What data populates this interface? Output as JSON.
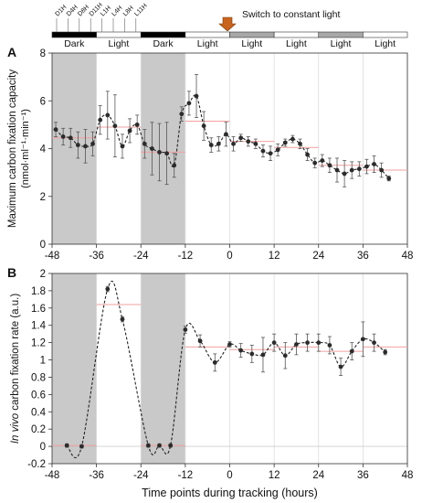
{
  "timeline": {
    "arrow_label": "Switch to constant light",
    "tick_labels": [
      "D1H",
      "D4H",
      "D8H",
      "D11H",
      "L1H",
      "L4H",
      "L8H",
      "L11H"
    ],
    "bars": [
      {
        "label": "Dark",
        "shade": "black"
      },
      {
        "label": "Light",
        "shade": "white"
      },
      {
        "label": "Dark",
        "shade": "black"
      },
      {
        "label": "Light",
        "shade": "white"
      },
      {
        "label": "Light",
        "shade": "gray"
      },
      {
        "label": "Light",
        "shade": "white"
      },
      {
        "label": "Light",
        "shade": "gray"
      },
      {
        "label": "Light",
        "shade": "white"
      }
    ],
    "arrow_color": "#C8641E"
  },
  "chart_data": [
    {
      "type": "line",
      "panel_label": "A",
      "ylabel": "Maximum carbon fixation capacity",
      "ylabel_unit": "(nmol·ml⁻¹·min⁻¹)",
      "xlim": [
        -48,
        48
      ],
      "ylim": [
        0,
        8
      ],
      "x_ticks": [
        -48,
        -36,
        -24,
        -12,
        0,
        12,
        24,
        36,
        48
      ],
      "y_ticks": [
        0,
        2,
        4,
        6,
        8
      ],
      "dark_intervals": [
        [
          -48,
          -36
        ],
        [
          -24,
          -12
        ]
      ],
      "series": [
        {
          "x": [
            -47,
            -45,
            -43,
            -41,
            -39,
            -37,
            -35,
            -33,
            -31,
            -29,
            -27,
            -25,
            -23,
            -21,
            -19,
            -17,
            -15,
            -13,
            -11,
            -9,
            -7,
            -5,
            -3,
            -1,
            1,
            3,
            5,
            7,
            9,
            11,
            13,
            15,
            17,
            19,
            21,
            23,
            25,
            27,
            29,
            31,
            33,
            35,
            37,
            39,
            41,
            43
          ],
          "y": [
            4.8,
            4.5,
            4.45,
            4.15,
            4.1,
            4.2,
            5.2,
            5.4,
            4.95,
            4.1,
            4.75,
            5.0,
            4.2,
            4.0,
            3.85,
            3.8,
            3.3,
            5.45,
            5.9,
            6.2,
            4.95,
            4.15,
            4.2,
            4.6,
            4.2,
            4.45,
            4.3,
            4.2,
            3.9,
            3.8,
            3.95,
            4.25,
            4.4,
            4.2,
            3.75,
            3.4,
            3.5,
            3.3,
            3.1,
            2.95,
            3.1,
            3.15,
            3.25,
            3.35,
            3.1,
            2.75
          ],
          "err": [
            0.3,
            0.35,
            0.4,
            0.55,
            0.7,
            0.5,
            0.6,
            1.0,
            1.3,
            0.5,
            0.5,
            0.4,
            0.6,
            1.1,
            1.2,
            1.3,
            0.5,
            0.3,
            0.5,
            0.9,
            0.6,
            0.3,
            0.3,
            0.5,
            0.3,
            0.15,
            0.2,
            0.2,
            0.25,
            0.3,
            0.25,
            0.15,
            0.15,
            0.2,
            0.25,
            0.2,
            0.25,
            0.3,
            0.5,
            0.55,
            0.35,
            0.3,
            0.3,
            0.35,
            0.3,
            0.1
          ]
        }
      ],
      "mean_segments": [
        {
          "x0": -48,
          "x1": -36,
          "y": 4.45
        },
        {
          "x0": -36,
          "x1": -24,
          "y": 4.9
        },
        {
          "x0": -24,
          "x1": -12,
          "y": 3.85
        },
        {
          "x0": -12,
          "x1": 0,
          "y": 5.15
        },
        {
          "x0": 0,
          "x1": 12,
          "y": 4.3
        },
        {
          "x0": 12,
          "x1": 24,
          "y": 4.05
        },
        {
          "x0": 24,
          "x1": 36,
          "y": 3.3
        },
        {
          "x0": 36,
          "x1": 48,
          "y": 3.1
        }
      ],
      "line_color": "#222222",
      "mean_color": "#F2A0A0",
      "dark_color": "#C9C9C9"
    },
    {
      "type": "line",
      "panel_label": "B",
      "ylabel_italic": "In vivo",
      "ylabel": " carbon fixation rate (a.u.)",
      "xlabel": "Time points during tracking (hours)",
      "xlim": [
        -48,
        48
      ],
      "ylim": [
        -0.2,
        2
      ],
      "x_ticks": [
        -48,
        -36,
        -24,
        -12,
        0,
        12,
        24,
        36,
        48
      ],
      "y_ticks": [
        -0.2,
        0,
        0.2,
        0.4,
        0.6,
        0.8,
        1,
        1.2,
        1.4,
        1.6,
        1.8,
        2
      ],
      "dark_intervals": [
        [
          -48,
          -36
        ],
        [
          -24,
          -12
        ]
      ],
      "series": [
        {
          "x": [
            -44,
            -40,
            -33,
            -29,
            -22,
            -19,
            -16,
            -12,
            -8,
            -4,
            0,
            3,
            6,
            9,
            12,
            15,
            18,
            21,
            24,
            27,
            30,
            33,
            36,
            39,
            42
          ],
          "y": [
            0.01,
            0.0,
            1.82,
            1.47,
            0.01,
            0.01,
            0.01,
            1.35,
            1.22,
            0.97,
            1.18,
            1.11,
            1.07,
            1.06,
            1.2,
            1.05,
            1.18,
            1.2,
            1.2,
            1.17,
            0.92,
            1.1,
            1.24,
            1.2,
            1.09
          ],
          "err": [
            0.02,
            0.02,
            0.03,
            0.03,
            0.02,
            0.02,
            0.02,
            0.04,
            0.07,
            0.1,
            0.03,
            0.08,
            0.1,
            0.2,
            0.1,
            0.15,
            0.12,
            0.1,
            0.1,
            0.1,
            0.1,
            0.1,
            0.2,
            0.1,
            0.03
          ]
        }
      ],
      "mean_segments": [
        {
          "x0": -48,
          "x1": -36,
          "y": 0.01
        },
        {
          "x0": -36,
          "x1": -24,
          "y": 1.64
        },
        {
          "x0": -24,
          "x1": -12,
          "y": 0.01
        },
        {
          "x0": -12,
          "x1": 0,
          "y": 1.15
        },
        {
          "x0": 0,
          "x1": 12,
          "y": 1.12
        },
        {
          "x0": 12,
          "x1": 24,
          "y": 1.15
        },
        {
          "x0": 24,
          "x1": 36,
          "y": 1.1
        },
        {
          "x0": 36,
          "x1": 48,
          "y": 1.15
        }
      ],
      "line_color": "#222222",
      "mean_color": "#F2A0A0",
      "dark_color": "#C9C9C9"
    }
  ]
}
